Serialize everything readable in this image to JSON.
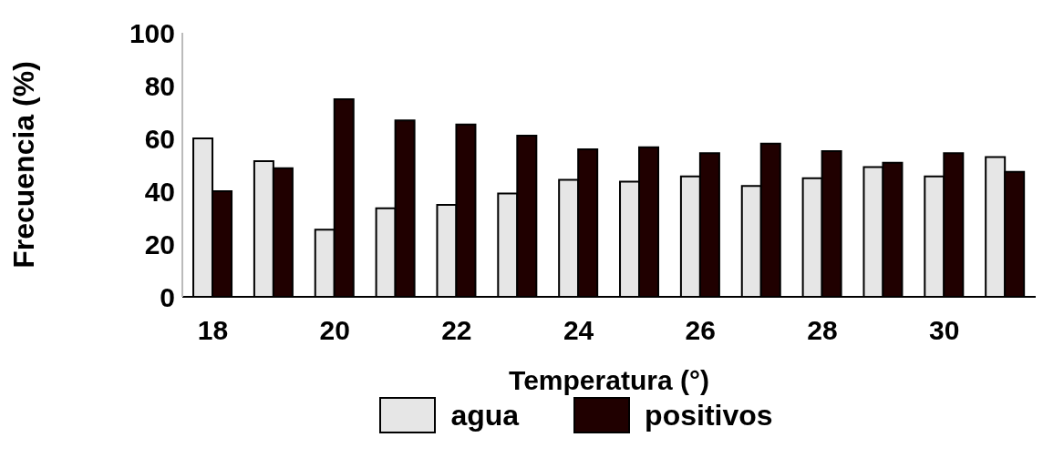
{
  "chart_data": {
    "type": "bar",
    "xlabel": "Temperatura (°)",
    "ylabel": "Frecuencia (%)",
    "categories": [
      "18",
      null,
      "20",
      null,
      "22",
      null,
      "24",
      null,
      "26",
      null,
      "28",
      null,
      "30",
      null
    ],
    "series": [
      {
        "name": "agua",
        "color": "#e6e6e6",
        "values": [
          60,
          51.4,
          25.4,
          33.5,
          34.8,
          39.1,
          44.3,
          43.6,
          45.6,
          42,
          44.9,
          49.1,
          45.6,
          52.9
        ]
      },
      {
        "name": "positivos",
        "color": "#200000",
        "values": [
          40,
          48.7,
          74.8,
          66.8,
          65.3,
          61,
          55.9,
          56.6,
          54.4,
          58,
          55.2,
          50.8,
          54.4,
          47.3
        ]
      }
    ],
    "ylim": [
      0,
      100
    ],
    "yticks": [
      0,
      20,
      40,
      60,
      80,
      100
    ],
    "grid": false,
    "legend": "bottom"
  }
}
